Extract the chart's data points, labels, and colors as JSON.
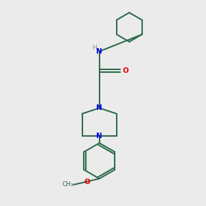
{
  "background_color": "#ebebeb",
  "bond_color": "#2d6b4a",
  "N_color": "#0000ee",
  "O_color": "#ee0000",
  "H_color": "#7a9a7a",
  "line_width": 1.5,
  "figsize": [
    3.0,
    3.0
  ],
  "dpi": 100,
  "xlim": [
    0,
    10
  ],
  "ylim": [
    0,
    10
  ]
}
